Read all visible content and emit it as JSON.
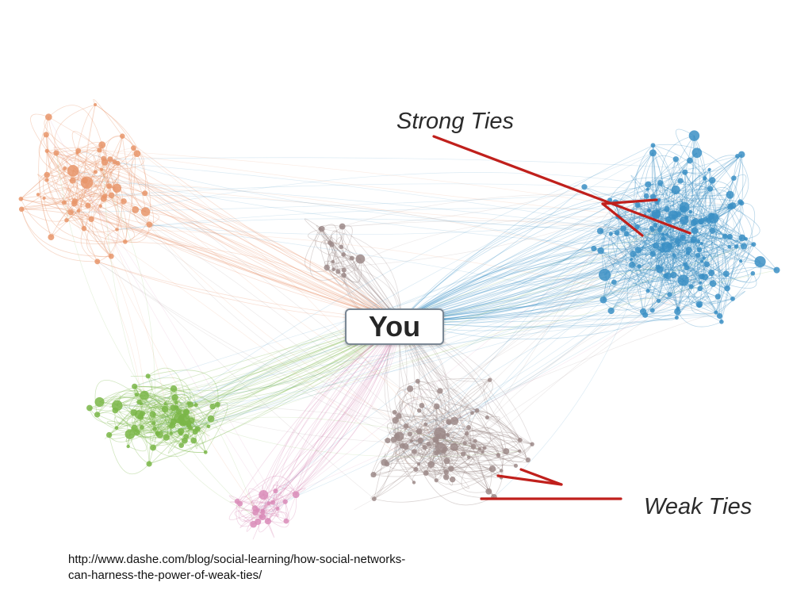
{
  "labels": {
    "center": "You",
    "strong_ties": "Strong Ties",
    "weak_ties": "Weak Ties"
  },
  "source": {
    "line1": "http://www.dashe.com/blog/social-learning/how-social-networks-",
    "line2": "can-harness-the-power-of-weak-ties/"
  },
  "colors": {
    "strong_cluster": "#3b8fc4",
    "orange_cluster": "#e8956a",
    "green_cluster": "#7ab648",
    "pink_cluster": "#d98cb8",
    "weak_cluster": "#9c8a88",
    "arrow": "#c0201c"
  }
}
